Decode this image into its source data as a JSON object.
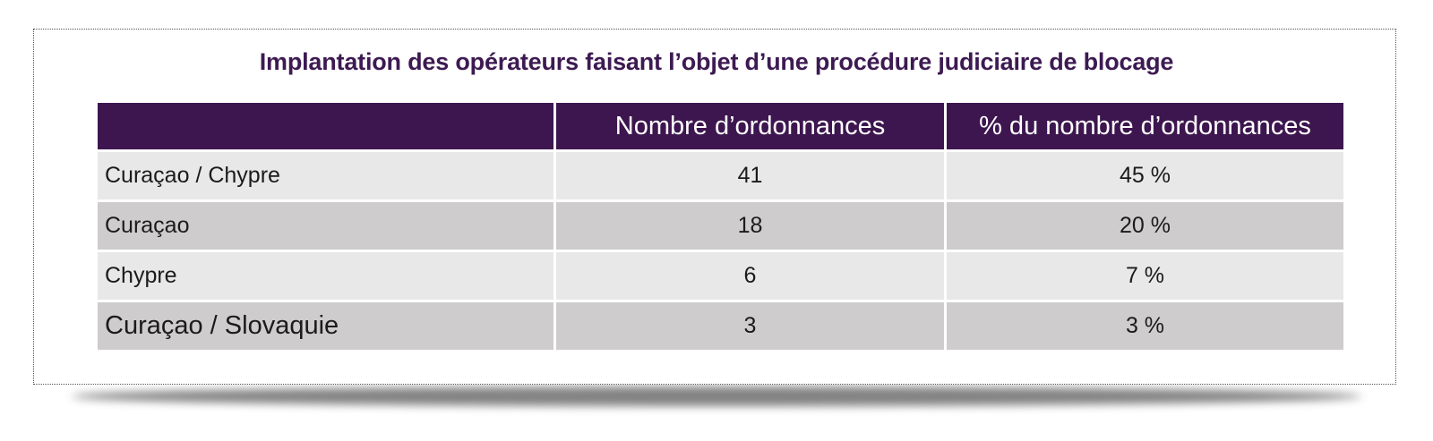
{
  "title": "Implantation des opérateurs faisant l’objet d’une procédure judiciaire de blocage",
  "table": {
    "headers": [
      "",
      "Nombre d’ordonnances",
      "% du nombre d’ordonnances"
    ],
    "rows": [
      {
        "label": "Curaçao / Chypre",
        "count": "41",
        "percent": "45 %"
      },
      {
        "label": "Curaçao",
        "count": "18",
        "percent": "20 %"
      },
      {
        "label": "Chypre",
        "count": "6",
        "percent": "7 %"
      },
      {
        "label": "Curaçao / Slovaquie",
        "count": "3",
        "percent": "3 %"
      }
    ]
  },
  "colors": {
    "title_text": "#3d1a52",
    "header_background": "#3d164f",
    "row_light": "#e9e8e8",
    "row_dark": "#cecccd"
  }
}
